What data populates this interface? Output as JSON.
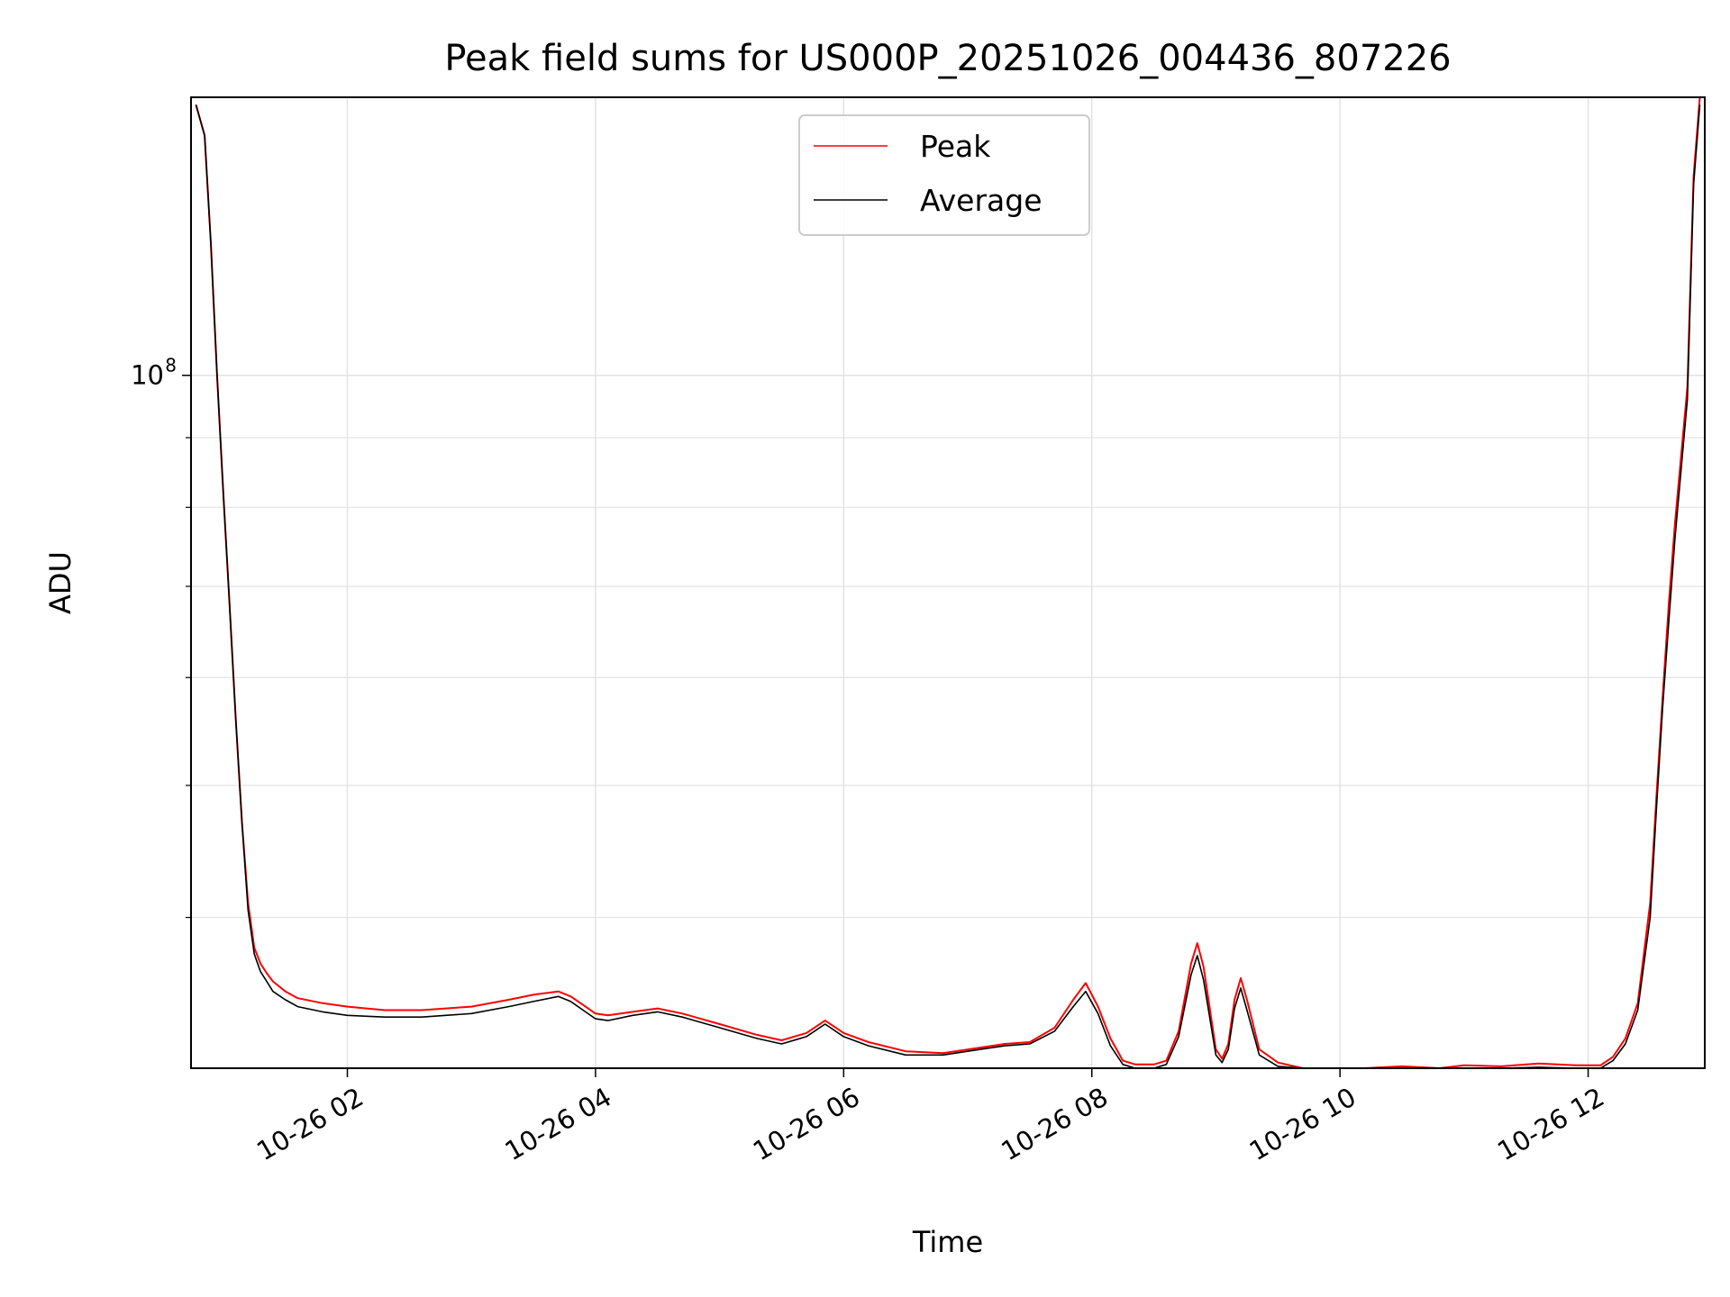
{
  "chart_data": {
    "type": "line",
    "title": "Peak field sums for US000P_20251026_004436_807226",
    "xlabel": "Time",
    "ylabel": "ADU",
    "x_unit": "hours since 2025-10-26 00:00",
    "xlim": [
      0.74,
      12.94
    ],
    "ylim": [
      31000000,
      160000000
    ],
    "yscale": "log",
    "grid": true,
    "legend_position": "upper center",
    "x_ticks": [
      {
        "value": 2,
        "label": "10-26 02"
      },
      {
        "value": 4,
        "label": "10-26 04"
      },
      {
        "value": 6,
        "label": "10-26 06"
      },
      {
        "value": 8,
        "label": "10-26 08"
      },
      {
        "value": 10,
        "label": "10-26 10"
      },
      {
        "value": 12,
        "label": "10-26 12"
      }
    ],
    "y_major_ticks": [
      {
        "value": 100000000,
        "label_base": "10",
        "label_exp": "8"
      }
    ],
    "y_minor_ticks": [
      40000000,
      50000000,
      60000000,
      70000000,
      80000000,
      90000000
    ],
    "series": [
      {
        "name": "Peak",
        "color": "#ff0000",
        "x": [
          0.78,
          0.85,
          0.9,
          0.95,
          1.0,
          1.05,
          1.1,
          1.15,
          1.2,
          1.25,
          1.3,
          1.35,
          1.4,
          1.5,
          1.6,
          1.8,
          2.0,
          2.3,
          2.6,
          3.0,
          3.3,
          3.5,
          3.7,
          3.8,
          3.9,
          4.0,
          4.1,
          4.3,
          4.5,
          4.7,
          5.0,
          5.3,
          5.5,
          5.7,
          5.85,
          6.0,
          6.2,
          6.5,
          6.8,
          7.1,
          7.3,
          7.5,
          7.7,
          7.85,
          7.95,
          8.05,
          8.15,
          8.25,
          8.35,
          8.5,
          8.6,
          8.7,
          8.8,
          8.85,
          8.9,
          9.0,
          9.05,
          9.1,
          9.15,
          9.2,
          9.25,
          9.35,
          9.5,
          9.7,
          9.9,
          10.2,
          10.5,
          10.8,
          11.0,
          11.3,
          11.6,
          11.9,
          12.1,
          12.2,
          12.3,
          12.4,
          12.5,
          12.55,
          12.6,
          12.65,
          12.7,
          12.8,
          12.85,
          12.9
        ],
        "values": [
          158000000.0,
          150000000.0,
          125000000.0,
          100000000.0,
          82000000.0,
          68000000.0,
          56000000.0,
          47000000.0,
          41000000.0,
          38000000.0,
          37000000.0,
          36400000.0,
          35900000.0,
          35300000.0,
          34900000.0,
          34600000.0,
          34400000.0,
          34200000.0,
          34200000.0,
          34400000.0,
          34800000.0,
          35100000.0,
          35300000.0,
          35000000.0,
          34500000.0,
          34000000.0,
          33900000.0,
          34100000.0,
          34300000.0,
          34000000.0,
          33400000.0,
          32800000.0,
          32500000.0,
          32900000.0,
          33600000.0,
          32900000.0,
          32400000.0,
          31900000.0,
          31800000.0,
          32100000.0,
          32300000.0,
          32400000.0,
          33200000.0,
          34800000.0,
          35800000.0,
          34400000.0,
          32600000.0,
          31400000.0,
          31200000.0,
          31200000.0,
          31400000.0,
          33000000.0,
          37000000.0,
          38300000.0,
          36800000.0,
          32000000.0,
          31500000.0,
          32300000.0,
          34800000.0,
          36100000.0,
          34800000.0,
          32000000.0,
          31300000.0,
          31000000.0,
          30850000.0,
          31000000.0,
          31100000.0,
          31000000.0,
          31150000.0,
          31100000.0,
          31250000.0,
          31150000.0,
          31150000.0,
          31600000.0,
          32600000.0,
          34600000.0,
          41000000.0,
          49000000.0,
          58000000.0,
          68000000.0,
          78000000.0,
          98000000.0,
          140000000.0,
          160000000.0
        ]
      },
      {
        "name": "Average",
        "color": "#000000",
        "x": [
          0.78,
          0.85,
          0.9,
          0.95,
          1.0,
          1.05,
          1.1,
          1.15,
          1.2,
          1.25,
          1.3,
          1.35,
          1.4,
          1.5,
          1.6,
          1.8,
          2.0,
          2.3,
          2.6,
          3.0,
          3.3,
          3.5,
          3.7,
          3.8,
          3.9,
          4.0,
          4.1,
          4.3,
          4.5,
          4.7,
          5.0,
          5.3,
          5.5,
          5.7,
          5.85,
          6.0,
          6.2,
          6.5,
          6.8,
          7.1,
          7.3,
          7.5,
          7.7,
          7.85,
          7.95,
          8.05,
          8.15,
          8.25,
          8.35,
          8.5,
          8.6,
          8.7,
          8.8,
          8.85,
          8.9,
          9.0,
          9.05,
          9.1,
          9.15,
          9.2,
          9.25,
          9.35,
          9.5,
          9.7,
          9.9,
          10.2,
          10.5,
          10.8,
          11.0,
          11.3,
          11.6,
          11.9,
          12.1,
          12.2,
          12.3,
          12.4,
          12.5,
          12.55,
          12.6,
          12.65,
          12.7,
          12.8,
          12.85,
          12.9
        ],
        "values": [
          158000000.0,
          150000000.0,
          125000000.0,
          100000000.0,
          82000000.0,
          68000000.0,
          56000000.0,
          47000000.0,
          40500000.0,
          37600000.0,
          36500000.0,
          35900000.0,
          35300000.0,
          34800000.0,
          34400000.0,
          34100000.0,
          33900000.0,
          33800000.0,
          33800000.0,
          34000000.0,
          34400000.0,
          34700000.0,
          35000000.0,
          34700000.0,
          34200000.0,
          33700000.0,
          33600000.0,
          33900000.0,
          34100000.0,
          33800000.0,
          33200000.0,
          32600000.0,
          32300000.0,
          32700000.0,
          33400000.0,
          32700000.0,
          32200000.0,
          31700000.0,
          31700000.0,
          32000000.0,
          32200000.0,
          32300000.0,
          33000000.0,
          34400000.0,
          35300000.0,
          34000000.0,
          32200000.0,
          31200000.0,
          31000000.0,
          31000000.0,
          31200000.0,
          32700000.0,
          36300000.0,
          37500000.0,
          36000000.0,
          31700000.0,
          31300000.0,
          32000000.0,
          34300000.0,
          35500000.0,
          34200000.0,
          31700000.0,
          31100000.0,
          30800000.0,
          30700000.0,
          30800000.0,
          30900000.0,
          30850000.0,
          30950000.0,
          30900000.0,
          31050000.0,
          30950000.0,
          30950000.0,
          31400000.0,
          32300000.0,
          34200000.0,
          40000000.0,
          48000000.0,
          57000000.0,
          66000000.0,
          76000000.0,
          96000000.0,
          138000000.0,
          158000000.0
        ]
      }
    ]
  }
}
